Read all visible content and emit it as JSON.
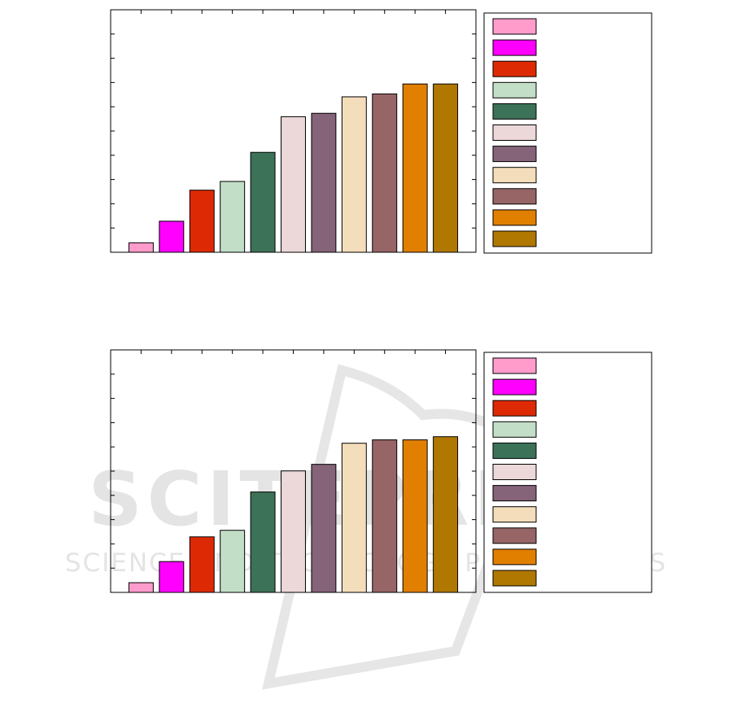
{
  "watermark": {
    "line1": "SCITEPRESS",
    "line2": "SCIENCE AND TECHNOLOGY PUBLICATIONS"
  },
  "chart_data": [
    {
      "type": "bar",
      "title": "",
      "xlabel": "",
      "ylabel": "",
      "ylim": [
        0,
        10
      ],
      "grid": false,
      "legend_placement": "right-outside",
      "colors": [
        "#ff9ccb",
        "#ff00ff",
        "#dd2a04",
        "#c3dec7",
        "#3c7258",
        "#ecd8d8",
        "#856379",
        "#f4ddbb",
        "#976566",
        "#e07f00",
        "#b07800"
      ],
      "values": [
        0.39,
        1.28,
        2.56,
        2.92,
        4.12,
        5.59,
        5.73,
        6.41,
        6.53,
        6.94,
        6.94
      ]
    },
    {
      "type": "bar",
      "title": "",
      "xlabel": "",
      "ylabel": "",
      "ylim": [
        0,
        10
      ],
      "grid": false,
      "legend_placement": "right-outside",
      "colors": [
        "#ff9ccb",
        "#ff00ff",
        "#dd2a04",
        "#c3dec7",
        "#3c7258",
        "#ecd8d8",
        "#856379",
        "#f4ddbb",
        "#976566",
        "#e07f00",
        "#b07800"
      ],
      "values": [
        0.4,
        1.27,
        2.29,
        2.56,
        4.14,
        5.01,
        5.28,
        6.15,
        6.29,
        6.29,
        6.42
      ]
    }
  ]
}
